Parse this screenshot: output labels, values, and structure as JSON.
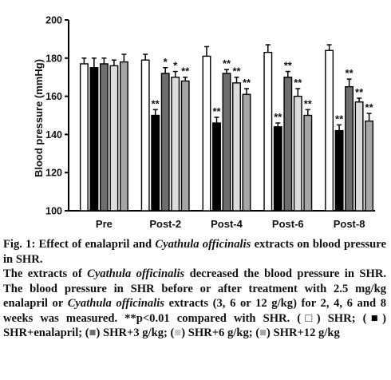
{
  "chart_data": {
    "type": "bar",
    "ylabel": "Blood pressure (mmHg)",
    "ylim": [
      100,
      200
    ],
    "yticks": [
      100,
      120,
      140,
      160,
      180,
      200
    ],
    "grid": false,
    "categories": [
      "Pre",
      "Post-2",
      "Post-4",
      "Post-6",
      "Post-8"
    ],
    "series": [
      {
        "name": "SHR",
        "fill": "#ffffff",
        "values": [
          177,
          179,
          181,
          183,
          184
        ],
        "errors": [
          3,
          3,
          5,
          4,
          3
        ],
        "annotations": [
          "",
          "",
          "",
          "",
          ""
        ]
      },
      {
        "name": "SHR+enalapril",
        "fill": "#000000",
        "values": [
          175,
          150,
          146,
          144,
          142
        ],
        "errors": [
          5,
          3,
          3,
          2,
          3
        ],
        "annotations": [
          "",
          "**",
          "**",
          "**",
          "**"
        ]
      },
      {
        "name": "SHR+3 g/kg",
        "fill": "#6e6e6e",
        "values": [
          177,
          172,
          172,
          170,
          165
        ],
        "errors": [
          3,
          3,
          2,
          3,
          4
        ],
        "annotations": [
          "",
          "*",
          "**",
          "**",
          "**"
        ]
      },
      {
        "name": "SHR+6 g/kg",
        "fill": "#dcdcdc",
        "values": [
          176,
          170,
          167,
          160,
          157
        ],
        "errors": [
          3,
          3,
          3,
          4,
          2
        ],
        "annotations": [
          "",
          "*",
          "**",
          "**",
          "**"
        ]
      },
      {
        "name": "SHR+12 g/kg",
        "fill": "#a6a6a6",
        "values": [
          178,
          168,
          161,
          150,
          147
        ],
        "errors": [
          4,
          2,
          3,
          3,
          4
        ],
        "annotations": [
          "",
          "**",
          "**",
          "**",
          "**"
        ]
      }
    ]
  },
  "caption": {
    "fig_label": "Fig. 1:",
    "title_a": " Effect of enalapril and ",
    "title_italic": "Cyathula officinalis",
    "title_b": " extracts on blood pressure in SHR.",
    "body_a": "The extracts of ",
    "body_italic_1": "Cyathula officinalis",
    "body_b": " decreased the blood pressure in SHR. The blood pressure in SHR before or after treatment with 2.5 mg/kg enalapril or ",
    "body_italic_2": "Cyathula officinalis",
    "body_c": " extracts (3, 6 or 12 g/kg) for 2, 4, 6 and 8 weeks was measured. **p<0.01 compared with SHR. (",
    "sym1": "□",
    "body_d": ") SHR; (",
    "sym2": "■",
    "body_e": ") SHR+enalapril; (",
    "sym3": "■",
    "body_f": ") SHR+3 g/kg; (",
    "sym4": "■",
    "body_g": ") SHR+6 g/kg; (",
    "sym5": "■",
    "body_h": ") SHR+12 g/kg"
  }
}
